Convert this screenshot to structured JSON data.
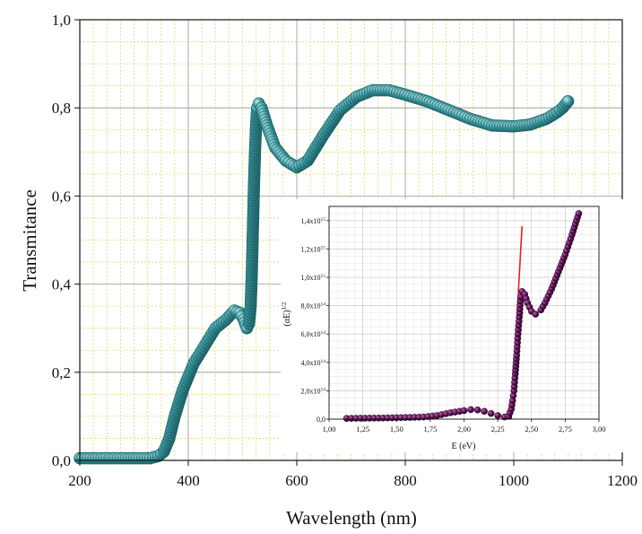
{
  "chart_data": [
    {
      "type": "scatter",
      "xlabel": "Wavelength (nm)",
      "ylabel": "Transmitance",
      "xlim": [
        200,
        1200
      ],
      "ylim": [
        0,
        1.0
      ],
      "xticks": [
        "200",
        "400",
        "600",
        "800",
        "1000",
        "1200"
      ],
      "yticks": [
        "0,0",
        "0,2",
        "0,4",
        "0,6",
        "0,8",
        "1,0"
      ],
      "grid": true,
      "marker_color": "#3a9aa0",
      "series": [
        {
          "x": [
            200,
            250,
            300,
            330,
            345,
            355,
            365,
            375,
            390,
            410,
            430,
            450,
            470,
            485,
            495,
            502,
            508,
            512,
            515,
            517,
            519,
            521,
            523,
            525,
            527,
            530,
            535,
            545,
            560,
            580,
            600,
            620,
            650,
            680,
            710,
            740,
            770,
            800,
            840,
            880,
            920,
            960,
            1000,
            1030,
            1060,
            1080,
            1090,
            1100
          ],
          "y": [
            0.005,
            0.005,
            0.005,
            0.005,
            0.01,
            0.02,
            0.05,
            0.1,
            0.16,
            0.22,
            0.26,
            0.3,
            0.32,
            0.34,
            0.335,
            0.32,
            0.3,
            0.31,
            0.35,
            0.42,
            0.52,
            0.62,
            0.7,
            0.76,
            0.8,
            0.81,
            0.8,
            0.76,
            0.71,
            0.68,
            0.665,
            0.68,
            0.74,
            0.795,
            0.825,
            0.84,
            0.84,
            0.83,
            0.815,
            0.795,
            0.775,
            0.76,
            0.758,
            0.762,
            0.775,
            0.79,
            0.8,
            0.815
          ]
        }
      ]
    },
    {
      "type": "scatter",
      "xlabel": "E (eV)",
      "ylabel": "(αE)",
      "ylabel_sup": "1/2",
      "xlim": [
        1.0,
        3.0
      ],
      "ylim": [
        0,
        1500000000000000.0
      ],
      "xticks": [
        "1,00",
        "1,25",
        "1,50",
        "1,75",
        "2,00",
        "2,25",
        "2,50",
        "2,75",
        "3,00"
      ],
      "yticks": [
        {
          "m": "0,0",
          "e": ""
        },
        {
          "m": "2,0x10",
          "e": "14"
        },
        {
          "m": "4,0x10",
          "e": "14"
        },
        {
          "m": "6,0x10",
          "e": "14"
        },
        {
          "m": "8,0x10",
          "e": "14"
        },
        {
          "m": "1,0x10",
          "e": "15"
        },
        {
          "m": "1,2x10",
          "e": "15"
        },
        {
          "m": "1,4x10",
          "e": "15"
        }
      ],
      "grid": true,
      "marker_color": "#5a0e52",
      "fit_line_color": "#e2231a",
      "series": [
        {
          "x": [
            1.13,
            1.2,
            1.3,
            1.4,
            1.5,
            1.6,
            1.7,
            1.8,
            1.9,
            2.0,
            2.05,
            2.1,
            2.15,
            2.2,
            2.25,
            2.3,
            2.33,
            2.35,
            2.36,
            2.37,
            2.38,
            2.39,
            2.4,
            2.41,
            2.42,
            2.43,
            2.45,
            2.47,
            2.5,
            2.53,
            2.57,
            2.6,
            2.65,
            2.7,
            2.75,
            2.8,
            2.85
          ],
          "y": [
            5000000000000.0,
            6000000000000.0,
            7000000000000.0,
            8000000000000.0,
            10000000000000.0,
            12000000000000.0,
            15000000000000.0,
            25000000000000.0,
            45000000000000.0,
            60000000000000.0,
            67000000000000.0,
            65000000000000.0,
            55000000000000.0,
            40000000000000.0,
            25000000000000.0,
            15000000000000.0,
            20000000000000.0,
            70000000000000.0,
            130000000000000.0,
            200000000000000.0,
            320000000000000.0,
            450000000000000.0,
            600000000000000.0,
            720000000000000.0,
            860000000000000.0,
            900000000000000.0,
            880000000000000.0,
            820000000000000.0,
            760000000000000.0,
            740000000000000.0,
            770000000000000.0,
            820000000000000.0,
            920000000000000.0,
            1040000000000000.0,
            1160000000000000.0,
            1300000000000000.0,
            1450000000000000.0
          ]
        }
      ],
      "fit_line": {
        "x": [
          2.35,
          2.43
        ],
        "y": [
          0,
          1360000000000000.0
        ]
      }
    }
  ]
}
